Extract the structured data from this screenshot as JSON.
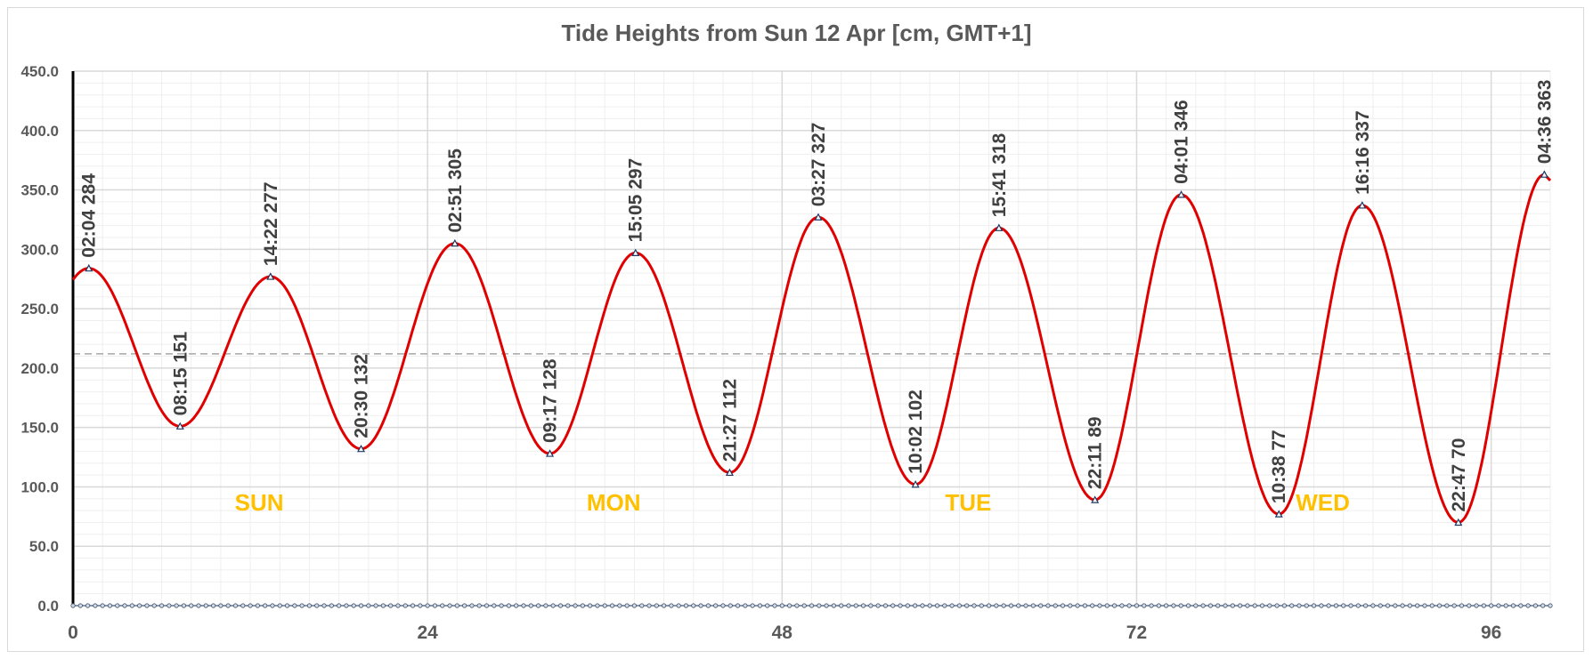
{
  "chart_data": {
    "type": "line",
    "title": "Tide Heights from Sun 12 Apr [cm, GMT+1]",
    "xlabel": "",
    "ylabel": "",
    "xlim": [
      0,
      100
    ],
    "ylim": [
      0,
      450
    ],
    "x_ticks": [
      0,
      24,
      48,
      72,
      96
    ],
    "x_tick_labels": [
      "0",
      "24",
      "48",
      "72",
      "96"
    ],
    "y_ticks": [
      0,
      50,
      100,
      150,
      200,
      250,
      300,
      350,
      400,
      450
    ],
    "y_tick_labels": [
      "0.0",
      "50.0",
      "100.0",
      "150.0",
      "200.0",
      "250.0",
      "300.0",
      "350.0",
      "400.0",
      "450.0"
    ],
    "reference_line": {
      "y": 212,
      "style": "dashed"
    },
    "grid": true,
    "colors": {
      "line": "#e00000",
      "title": "#595959",
      "day_label": "#ffc000",
      "grid": "#d9d9d9",
      "axis": "#000000"
    },
    "start_value": 274,
    "end_value": 358,
    "series": [
      {
        "values": [
          {
            "x": 1.07,
            "y": 284,
            "label": "02:04 284"
          },
          {
            "x": 7.25,
            "y": 151,
            "label": "08:15 151"
          },
          {
            "x": 13.37,
            "y": 277,
            "label": "14:22 277"
          },
          {
            "x": 19.5,
            "y": 132,
            "label": "20:30 132"
          },
          {
            "x": 25.85,
            "y": 305,
            "label": "02:51 305"
          },
          {
            "x": 32.28,
            "y": 128,
            "label": "09:17 128"
          },
          {
            "x": 38.08,
            "y": 297,
            "label": "15:05 297"
          },
          {
            "x": 44.45,
            "y": 112,
            "label": "21:27 112"
          },
          {
            "x": 50.45,
            "y": 327,
            "label": "03:27 327"
          },
          {
            "x": 57.03,
            "y": 102,
            "label": "10:02 102"
          },
          {
            "x": 62.68,
            "y": 318,
            "label": "15:41 318"
          },
          {
            "x": 69.18,
            "y": 89,
            "label": "22:11 89"
          },
          {
            "x": 75.02,
            "y": 346,
            "label": "04:01 346"
          },
          {
            "x": 81.63,
            "y": 77,
            "label": "10:38 77"
          },
          {
            "x": 87.27,
            "y": 337,
            "label": "16:16 337"
          },
          {
            "x": 93.78,
            "y": 70,
            "label": "22:47 70"
          },
          {
            "x": 99.6,
            "y": 363,
            "label": "04:36 363"
          }
        ]
      }
    ],
    "day_labels": [
      {
        "label": "SUN",
        "x": 12
      },
      {
        "label": "MON",
        "x": 36
      },
      {
        "label": "TUE",
        "x": 60
      },
      {
        "label": "WED",
        "x": 84
      }
    ]
  }
}
